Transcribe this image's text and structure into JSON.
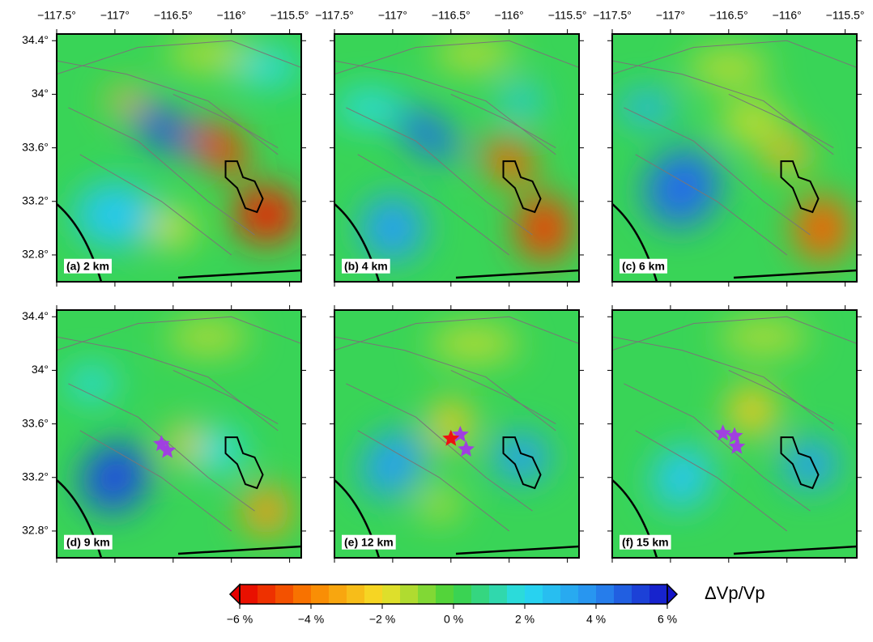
{
  "map": {
    "xlim": [
      -117.5,
      -115.4
    ],
    "ylim": [
      32.6,
      34.45
    ],
    "xticks": [
      {
        "value": -117.5,
        "label": "−117.5°"
      },
      {
        "value": -117,
        "label": "−117°"
      },
      {
        "value": -116.5,
        "label": "−116.5°"
      },
      {
        "value": -116,
        "label": "−116°"
      },
      {
        "value": -115.5,
        "label": "−115.5°"
      }
    ],
    "yticks": [
      {
        "value": 34.4,
        "label": "34.4°"
      },
      {
        "value": 34,
        "label": "34°"
      },
      {
        "value": 33.6,
        "label": "33.6°"
      },
      {
        "value": 33.2,
        "label": "33.2°"
      },
      {
        "value": 32.8,
        "label": "32.8°"
      }
    ]
  },
  "panels": [
    {
      "label": "(a) 2 km"
    },
    {
      "label": "(b) 4 km"
    },
    {
      "label": "(c) 6 km"
    },
    {
      "label": "(d) 9 km",
      "events": [
        {
          "lon": -116.6,
          "lat": 33.45,
          "color": "#a040e0"
        },
        {
          "lon": -116.55,
          "lat": 33.4,
          "color": "#a040e0"
        }
      ]
    },
    {
      "label": "(e) 12 km",
      "events": [
        {
          "lon": -116.42,
          "lat": 33.52,
          "color": "#a040e0"
        },
        {
          "lon": -116.37,
          "lat": 33.41,
          "color": "#a040e0"
        },
        {
          "lon": -116.5,
          "lat": 33.49,
          "color": "#ee1111"
        }
      ]
    },
    {
      "label": "(f) 15 km",
      "events": [
        {
          "lon": -116.55,
          "lat": 33.53,
          "color": "#a040e0"
        },
        {
          "lon": -116.45,
          "lat": 33.51,
          "color": "#a040e0"
        },
        {
          "lon": -116.43,
          "lat": 33.43,
          "color": "#a040e0"
        }
      ]
    }
  ],
  "colorbar": {
    "label": "ΔVp/Vp",
    "lim": [
      -6,
      6
    ],
    "ticks": [
      {
        "value": -6,
        "label": "−6 %"
      },
      {
        "value": -4,
        "label": "−4 %"
      },
      {
        "value": -2,
        "label": "−2 %"
      },
      {
        "value": 0,
        "label": "0 %"
      },
      {
        "value": 2,
        "label": "2 %"
      },
      {
        "value": 4,
        "label": "4 %"
      },
      {
        "value": 6,
        "label": "6 %"
      }
    ]
  }
}
